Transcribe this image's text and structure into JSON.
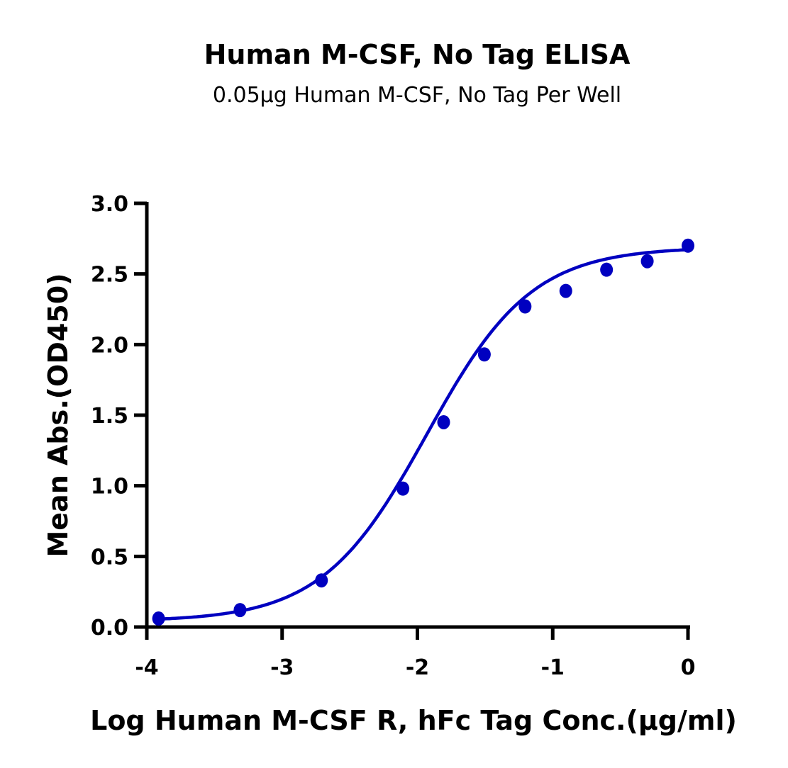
{
  "chart_data": {
    "type": "scatter",
    "title": "Human M-CSF, No Tag ELISA",
    "subtitle": "0.05μg Human M-CSF, No Tag Per Well",
    "xlabel": "Log Human M-CSF R, hFc Tag Conc.(μg/ml)",
    "ylabel": "Mean Abs.(OD450)",
    "xlim": [
      -4,
      0
    ],
    "ylim": [
      0,
      3.0
    ],
    "xticks": [
      "-4",
      "-3",
      "-2",
      "-1",
      "0"
    ],
    "yticks": [
      "0.0",
      "0.5",
      "1.0",
      "1.5",
      "2.0",
      "2.5",
      "3.0"
    ],
    "grid": false,
    "color": "#0000C0",
    "fit": "sigmoidal curve",
    "series": [
      {
        "x": [
          -3.913,
          -3.311,
          -2.709,
          -2.107,
          -1.806,
          -1.505,
          -1.204,
          -0.903,
          -0.602,
          -0.301,
          0
        ],
        "y": [
          0.06,
          0.12,
          0.33,
          0.98,
          1.45,
          1.93,
          2.27,
          2.38,
          2.53,
          2.59,
          2.7
        ]
      }
    ]
  }
}
